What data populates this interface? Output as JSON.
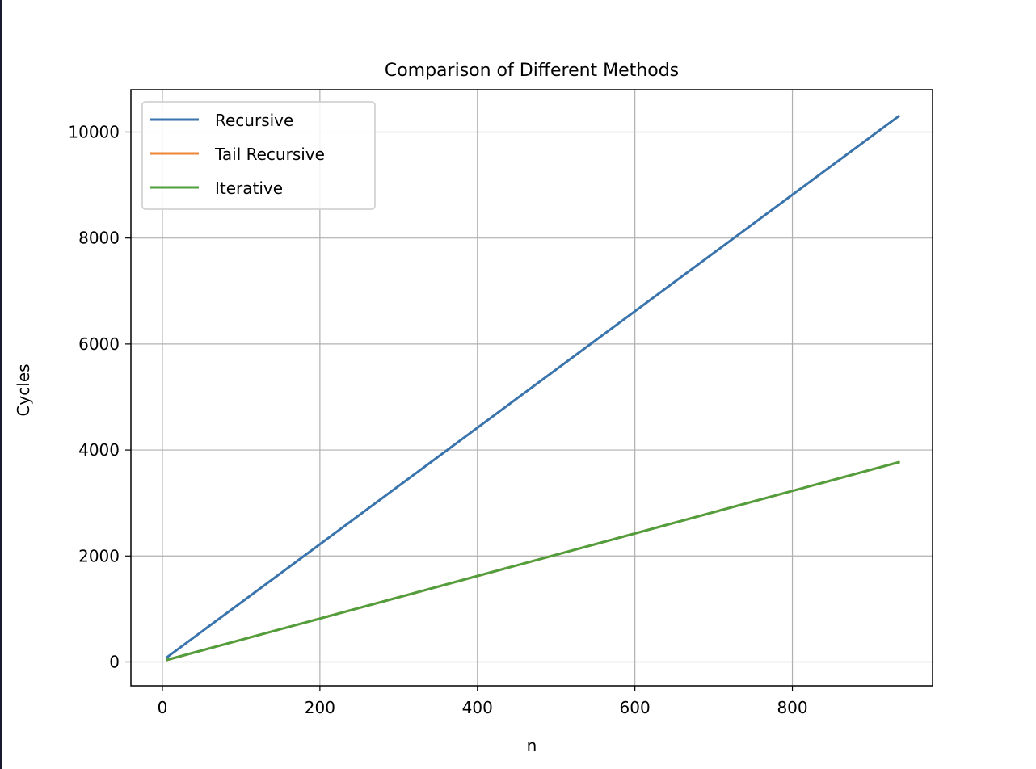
{
  "chart_data": {
    "type": "line",
    "title": "Comparison of Different Methods",
    "xlabel": "n",
    "ylabel": "Cycles",
    "xlim": [
      -40,
      978
    ],
    "ylim": [
      -450,
      10800
    ],
    "x_ticks": [
      0,
      200,
      400,
      600,
      800
    ],
    "y_ticks": [
      0,
      2000,
      4000,
      6000,
      8000,
      10000
    ],
    "grid": true,
    "legend_position": "upper left",
    "x": [
      6,
      935
    ],
    "series": [
      {
        "name": "Recursive",
        "color": "#3a74ad",
        "values": [
          90,
          10300
        ]
      },
      {
        "name": "Tail Recursive",
        "color": "#ef8636",
        "values": [
          40,
          3770
        ]
      },
      {
        "name": "Iterative",
        "color": "#519e3e",
        "values": [
          40,
          3770
        ]
      }
    ]
  }
}
